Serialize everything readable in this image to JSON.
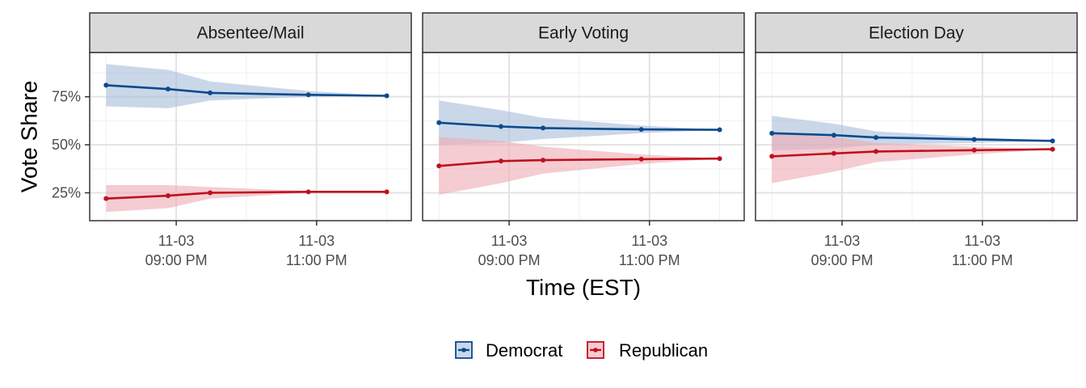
{
  "chart_data": {
    "type": "line",
    "xlabel": "Time (EST)",
    "ylabel": "Vote Share",
    "ylim": [
      0.105,
      0.98
    ],
    "y_ticks": [
      0.25,
      0.5,
      0.75
    ],
    "y_tick_labels": [
      "25%",
      "50%",
      "75%"
    ],
    "x_range": [
      "2020-11-03 19:46",
      "2020-11-04 00:21"
    ],
    "x_ticks": [
      "2020-11-03 21:00",
      "2020-11-03 23:00"
    ],
    "x_tick_labels": [
      [
        "11-03",
        "09:00 PM"
      ],
      [
        "11-03",
        "11:00 PM"
      ]
    ],
    "x": [
      "2020-11-03 20:00",
      "2020-11-03 20:53",
      "2020-11-03 21:29",
      "2020-11-03 22:53",
      "2020-11-04 00:00"
    ],
    "grid": true,
    "legend_position": "bottom",
    "colors": {
      "Democrat": "#0b4a8c",
      "Republican": "#c0101e",
      "Democrat_band": "#a9bedb",
      "Republican_band": "#eeacb4"
    },
    "panels": [
      {
        "title": "Absentee/Mail",
        "series": [
          {
            "name": "Democrat",
            "values": [
              0.81,
              0.79,
              0.77,
              0.76,
              0.755
            ],
            "lower": [
              0.7,
              0.69,
              0.73,
              0.75,
              0.755
            ],
            "upper": [
              0.92,
              0.89,
              0.83,
              0.78,
              0.755
            ]
          },
          {
            "name": "Republican",
            "values": [
              0.22,
              0.235,
              0.25,
              0.255,
              0.255
            ],
            "lower": [
              0.15,
              0.17,
              0.22,
              0.25,
              0.255
            ],
            "upper": [
              0.29,
              0.29,
              0.28,
              0.26,
              0.255
            ]
          }
        ]
      },
      {
        "title": "Early Voting",
        "series": [
          {
            "name": "Democrat",
            "values": [
              0.615,
              0.595,
              0.587,
              0.58,
              0.578
            ],
            "lower": [
              0.5,
              0.51,
              0.53,
              0.56,
              0.578
            ],
            "upper": [
              0.73,
              0.68,
              0.64,
              0.6,
              0.578
            ]
          },
          {
            "name": "Republican",
            "values": [
              0.39,
              0.415,
              0.42,
              0.425,
              0.428
            ],
            "lower": [
              0.24,
              0.3,
              0.35,
              0.4,
              0.428
            ],
            "upper": [
              0.54,
              0.52,
              0.49,
              0.45,
              0.428
            ]
          }
        ]
      },
      {
        "title": "Election Day",
        "series": [
          {
            "name": "Democrat",
            "values": [
              0.56,
              0.55,
              0.538,
              0.528,
              0.52
            ],
            "lower": [
              0.47,
              0.48,
              0.5,
              0.51,
              0.52
            ],
            "upper": [
              0.65,
              0.61,
              0.57,
              0.54,
              0.52
            ]
          },
          {
            "name": "Republican",
            "values": [
              0.44,
              0.455,
              0.465,
              0.472,
              0.477
            ],
            "lower": [
              0.3,
              0.36,
              0.41,
              0.45,
              0.477
            ],
            "upper": [
              0.56,
              0.54,
              0.51,
              0.49,
              0.477
            ]
          }
        ]
      }
    ],
    "legend": [
      "Democrat",
      "Republican"
    ]
  }
}
